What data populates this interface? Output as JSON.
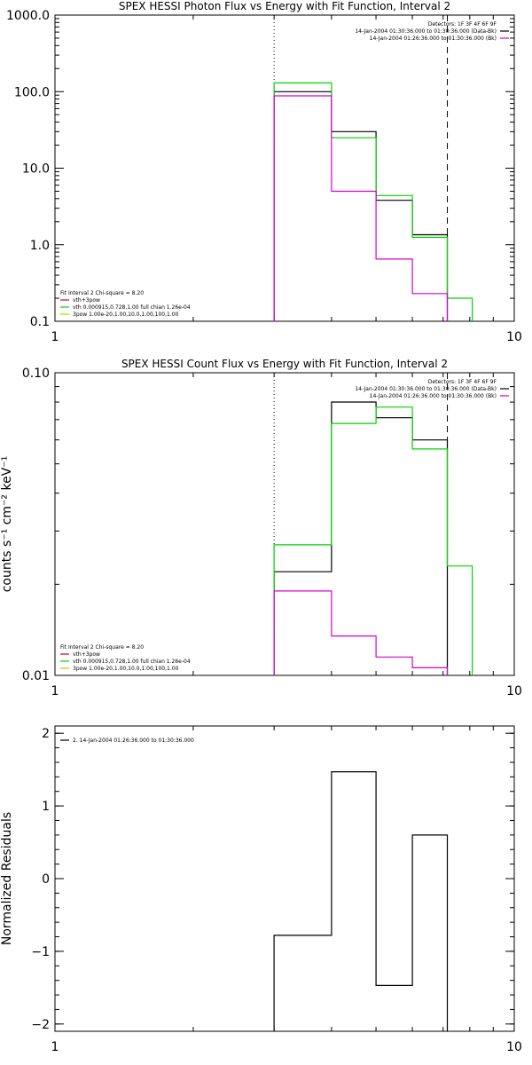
{
  "chart_data": [
    {
      "type": "line",
      "title": "SPEX HESSI Photon Flux vs Energy with Fit Function, Interval 2",
      "x_scale": "log",
      "y_scale": "log",
      "xlim": [
        1,
        10
      ],
      "ylim": [
        0.1,
        1000
      ],
      "x_ticks": [
        {
          "value": 1,
          "label": "1"
        },
        {
          "value": 10,
          "label": "10"
        }
      ],
      "y_ticks": [
        {
          "value": 0.1,
          "label": "0.1"
        },
        {
          "value": 1,
          "label": "1.0"
        },
        {
          "value": 10,
          "label": "10.0"
        },
        {
          "value": 100,
          "label": "100.0"
        },
        {
          "value": 1000,
          "label": "1000.0"
        }
      ],
      "ylabel": "",
      "xlabel": "",
      "vlines": [
        {
          "x": 3.0,
          "style": "dotted"
        },
        {
          "x": 7.15,
          "style": "dashed"
        }
      ],
      "info_lines": [
        "Detectors: 1F 3F 4F 6F 9F",
        "14-Jan-2004 01:30:36.000 to 01:30:36.000 (Data-Bk)",
        "14-Jan-2004 01:26:36.000 to 01:30:36.000 (Bk)"
      ],
      "info_colors": [
        "",
        "#000000",
        "#d400d4"
      ],
      "legend_lines": [
        "Fit Interval 2   Chi-square = 8.20",
        "vth+3pow",
        "vth 0.000915,0.728,1.00  full chian 1.26e-04",
        "3pow 1.00e-20,1.00,10.0,1.00,100,1.00"
      ],
      "legend_colors": [
        "",
        "#c8003c",
        "#00d400",
        "#c8c800"
      ],
      "series": [
        {
          "color": "#000000",
          "edges": [
            3.0,
            4.0,
            5.0,
            6.0,
            7.15
          ],
          "values": [
            100.0,
            30.0,
            3.8,
            1.35
          ]
        },
        {
          "color": "#00d400",
          "edges": [
            3.0,
            4.0,
            5.0,
            6.0,
            7.15,
            8.1
          ],
          "values": [
            130.0,
            25.0,
            4.4,
            1.25,
            0.2
          ]
        },
        {
          "color": "#d400d4",
          "edges": [
            3.0,
            4.0,
            5.0,
            6.0,
            7.15
          ],
          "values": [
            88.0,
            5.0,
            0.65,
            0.23
          ]
        }
      ]
    },
    {
      "type": "line",
      "title": "SPEX HESSI Count Flux vs Energy with Fit Function, Interval 2",
      "x_scale": "log",
      "y_scale": "log",
      "xlim": [
        1,
        10
      ],
      "ylim": [
        0.01,
        0.1
      ],
      "x_ticks": [
        {
          "value": 1,
          "label": "1"
        },
        {
          "value": 10,
          "label": "10"
        }
      ],
      "y_ticks": [
        {
          "value": 0.01,
          "label": "0.01"
        },
        {
          "value": 0.1,
          "label": "0.10"
        }
      ],
      "ylabel": "counts s⁻¹ cm⁻² keV⁻¹",
      "xlabel": "",
      "vlines": [
        {
          "x": 3.0,
          "style": "dotted"
        },
        {
          "x": 7.15,
          "style": "dashed"
        }
      ],
      "info_lines": [
        "Detectors: 1F 3F 4F 6F 9F",
        "14-Jan-2004 01:30:36.000 to 01:30:36.000 (Data-Bk)",
        "14-Jan-2004 01:26:36.000 to 01:30:36.000 (Bk)"
      ],
      "info_colors": [
        "",
        "#000000",
        "#d400d4"
      ],
      "legend_lines": [
        "Fit Interval 2   Chi-square = 8.20",
        "vth+3pow",
        "vth 0.000915,0.728,1.00  full chian 1.26e-04",
        "3pow 1.00e-20,1.00,10.0,1.00,100,1.00"
      ],
      "legend_colors": [
        "",
        "#c8003c",
        "#00d400",
        "#c8c800"
      ],
      "series": [
        {
          "color": "#000000",
          "edges": [
            3.0,
            4.0,
            5.0,
            6.0,
            7.15
          ],
          "values": [
            0.022,
            0.08,
            0.071,
            0.06
          ]
        },
        {
          "color": "#00d400",
          "edges": [
            3.0,
            4.0,
            5.0,
            6.0,
            7.15,
            8.1
          ],
          "values": [
            0.027,
            0.068,
            0.077,
            0.056,
            0.023
          ]
        },
        {
          "color": "#d400d4",
          "edges": [
            3.0,
            4.0,
            5.0,
            6.0,
            7.15
          ],
          "values": [
            0.019,
            0.0135,
            0.0115,
            0.0106
          ]
        }
      ]
    },
    {
      "type": "line",
      "title": "",
      "x_scale": "log",
      "y_scale": "linear",
      "xlim": [
        1,
        10
      ],
      "ylim": [
        -2.1,
        2.1
      ],
      "x_ticks": [
        {
          "value": 1,
          "label": "1"
        },
        {
          "value": 10,
          "label": "10"
        }
      ],
      "y_ticks": [
        {
          "value": -2,
          "label": "−2"
        },
        {
          "value": -1,
          "label": "−1"
        },
        {
          "value": 0,
          "label": "0"
        },
        {
          "value": 1,
          "label": "1"
        },
        {
          "value": 2,
          "label": "2"
        }
      ],
      "ylabel": "Normalized  Residuals",
      "xlabel": "",
      "vlines": [],
      "info_lines": [],
      "info_colors": [],
      "legend_lines": [
        "2. 14-Jan-2004 01:26:36.000 to 01:30:36.000"
      ],
      "legend_colors": [
        "#000000"
      ],
      "series": [
        {
          "color": "#000000",
          "edges": [
            3.0,
            4.0,
            5.0,
            6.0,
            7.15
          ],
          "values": [
            -0.78,
            1.47,
            -1.47,
            0.6
          ],
          "close_down_to_min": true
        }
      ]
    }
  ]
}
